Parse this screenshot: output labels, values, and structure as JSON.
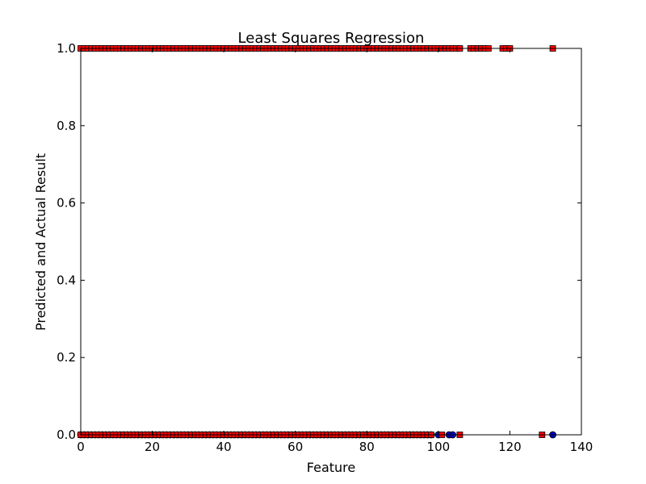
{
  "chart_data": {
    "type": "scatter",
    "title": "Least Squares Regression",
    "xlabel": "Feature",
    "ylabel": "Predicted and Actual Result",
    "xlim": [
      0,
      140
    ],
    "ylim": [
      0,
      1
    ],
    "xticks": [
      "0",
      "20",
      "40",
      "60",
      "80",
      "100",
      "120",
      "140"
    ],
    "yticks": [
      "0.0",
      "0.2",
      "0.4",
      "0.6",
      "0.8",
      "1.0"
    ],
    "grid": false,
    "series": [
      {
        "marker": "circle",
        "color": "#0000bf",
        "points": [
          [
            0,
            0
          ],
          [
            1,
            0
          ],
          [
            2,
            0
          ],
          [
            3,
            0
          ],
          [
            4,
            0
          ],
          [
            5,
            0
          ],
          [
            6,
            0
          ],
          [
            7,
            0
          ],
          [
            8,
            0
          ],
          [
            9,
            0
          ],
          [
            10,
            0
          ],
          [
            11,
            0
          ],
          [
            12,
            0
          ],
          [
            13,
            0
          ],
          [
            14,
            0
          ],
          [
            15,
            0
          ],
          [
            16,
            0
          ],
          [
            17,
            0
          ],
          [
            18,
            0
          ],
          [
            19,
            0
          ],
          [
            20,
            0
          ],
          [
            21,
            0
          ],
          [
            22,
            0
          ],
          [
            23,
            0
          ],
          [
            24,
            0
          ],
          [
            25,
            0
          ],
          [
            26,
            0
          ],
          [
            27,
            0
          ],
          [
            28,
            0
          ],
          [
            29,
            0
          ],
          [
            30,
            0
          ],
          [
            31,
            0
          ],
          [
            32,
            0
          ],
          [
            33,
            0
          ],
          [
            34,
            0
          ],
          [
            35,
            0
          ],
          [
            36,
            0
          ],
          [
            37,
            0
          ],
          [
            38,
            0
          ],
          [
            39,
            0
          ],
          [
            40,
            0
          ],
          [
            41,
            0
          ],
          [
            42,
            0
          ],
          [
            43,
            0
          ],
          [
            44,
            0
          ],
          [
            45,
            0
          ],
          [
            46,
            0
          ],
          [
            47,
            0
          ],
          [
            48,
            0
          ],
          [
            49,
            0
          ],
          [
            50,
            0
          ],
          [
            51,
            0
          ],
          [
            52,
            0
          ],
          [
            53,
            0
          ],
          [
            54,
            0
          ],
          [
            55,
            0
          ],
          [
            56,
            0
          ],
          [
            57,
            0
          ],
          [
            58,
            0
          ],
          [
            59,
            0
          ],
          [
            60,
            0
          ],
          [
            61,
            0
          ],
          [
            62,
            0
          ],
          [
            63,
            0
          ],
          [
            64,
            0
          ],
          [
            65,
            0
          ],
          [
            66,
            0
          ],
          [
            67,
            0
          ],
          [
            68,
            0
          ],
          [
            69,
            0
          ],
          [
            70,
            0
          ],
          [
            71,
            0
          ],
          [
            72,
            0
          ],
          [
            73,
            0
          ],
          [
            74,
            0
          ],
          [
            75,
            0
          ],
          [
            76,
            0
          ],
          [
            77,
            0
          ],
          [
            78,
            0
          ],
          [
            79,
            0
          ],
          [
            80,
            0
          ],
          [
            81,
            0
          ],
          [
            82,
            0
          ],
          [
            83,
            0
          ],
          [
            84,
            0
          ],
          [
            85,
            0
          ],
          [
            86,
            0
          ],
          [
            87,
            0
          ],
          [
            88,
            0
          ],
          [
            89,
            0
          ],
          [
            90,
            0
          ],
          [
            91,
            0
          ],
          [
            92,
            0
          ],
          [
            93,
            0
          ],
          [
            94,
            0
          ],
          [
            95,
            0
          ],
          [
            96,
            0
          ],
          [
            97,
            0
          ],
          [
            98,
            0
          ],
          [
            100,
            0
          ],
          [
            103,
            0
          ],
          [
            104,
            0
          ],
          [
            132,
            0
          ]
        ]
      },
      {
        "marker": "square",
        "color": "#ff0000",
        "points": [
          [
            0,
            0
          ],
          [
            1,
            0
          ],
          [
            2,
            0
          ],
          [
            3,
            0
          ],
          [
            4,
            0
          ],
          [
            5,
            0
          ],
          [
            6,
            0
          ],
          [
            7,
            0
          ],
          [
            8,
            0
          ],
          [
            9,
            0
          ],
          [
            10,
            0
          ],
          [
            11,
            0
          ],
          [
            12,
            0
          ],
          [
            13,
            0
          ],
          [
            14,
            0
          ],
          [
            15,
            0
          ],
          [
            16,
            0
          ],
          [
            17,
            0
          ],
          [
            18,
            0
          ],
          [
            19,
            0
          ],
          [
            20,
            0
          ],
          [
            21,
            0
          ],
          [
            22,
            0
          ],
          [
            23,
            0
          ],
          [
            24,
            0
          ],
          [
            25,
            0
          ],
          [
            26,
            0
          ],
          [
            27,
            0
          ],
          [
            28,
            0
          ],
          [
            29,
            0
          ],
          [
            30,
            0
          ],
          [
            31,
            0
          ],
          [
            32,
            0
          ],
          [
            33,
            0
          ],
          [
            34,
            0
          ],
          [
            35,
            0
          ],
          [
            36,
            0
          ],
          [
            37,
            0
          ],
          [
            38,
            0
          ],
          [
            39,
            0
          ],
          [
            40,
            0
          ],
          [
            41,
            0
          ],
          [
            42,
            0
          ],
          [
            43,
            0
          ],
          [
            44,
            0
          ],
          [
            45,
            0
          ],
          [
            46,
            0
          ],
          [
            47,
            0
          ],
          [
            48,
            0
          ],
          [
            49,
            0
          ],
          [
            50,
            0
          ],
          [
            51,
            0
          ],
          [
            52,
            0
          ],
          [
            53,
            0
          ],
          [
            54,
            0
          ],
          [
            55,
            0
          ],
          [
            56,
            0
          ],
          [
            57,
            0
          ],
          [
            58,
            0
          ],
          [
            59,
            0
          ],
          [
            60,
            0
          ],
          [
            61,
            0
          ],
          [
            62,
            0
          ],
          [
            63,
            0
          ],
          [
            64,
            0
          ],
          [
            65,
            0
          ],
          [
            66,
            0
          ],
          [
            67,
            0
          ],
          [
            68,
            0
          ],
          [
            69,
            0
          ],
          [
            70,
            0
          ],
          [
            71,
            0
          ],
          [
            72,
            0
          ],
          [
            73,
            0
          ],
          [
            74,
            0
          ],
          [
            75,
            0
          ],
          [
            76,
            0
          ],
          [
            77,
            0
          ],
          [
            78,
            0
          ],
          [
            79,
            0
          ],
          [
            80,
            0
          ],
          [
            81,
            0
          ],
          [
            82,
            0
          ],
          [
            83,
            0
          ],
          [
            84,
            0
          ],
          [
            85,
            0
          ],
          [
            86,
            0
          ],
          [
            87,
            0
          ],
          [
            88,
            0
          ],
          [
            89,
            0
          ],
          [
            90,
            0
          ],
          [
            91,
            0
          ],
          [
            92,
            0
          ],
          [
            93,
            0
          ],
          [
            94,
            0
          ],
          [
            95,
            0
          ],
          [
            96,
            0
          ],
          [
            97,
            0
          ],
          [
            98,
            0
          ],
          [
            101,
            0
          ],
          [
            106,
            0
          ],
          [
            129,
            0
          ],
          [
            0,
            1
          ],
          [
            1,
            1
          ],
          [
            2,
            1
          ],
          [
            3,
            1
          ],
          [
            4,
            1
          ],
          [
            5,
            1
          ],
          [
            6,
            1
          ],
          [
            7,
            1
          ],
          [
            8,
            1
          ],
          [
            9,
            1
          ],
          [
            10,
            1
          ],
          [
            11,
            1
          ],
          [
            12,
            1
          ],
          [
            13,
            1
          ],
          [
            14,
            1
          ],
          [
            15,
            1
          ],
          [
            16,
            1
          ],
          [
            17,
            1
          ],
          [
            18,
            1
          ],
          [
            19,
            1
          ],
          [
            20,
            1
          ],
          [
            21,
            1
          ],
          [
            22,
            1
          ],
          [
            23,
            1
          ],
          [
            24,
            1
          ],
          [
            25,
            1
          ],
          [
            26,
            1
          ],
          [
            27,
            1
          ],
          [
            28,
            1
          ],
          [
            29,
            1
          ],
          [
            30,
            1
          ],
          [
            31,
            1
          ],
          [
            32,
            1
          ],
          [
            33,
            1
          ],
          [
            34,
            1
          ],
          [
            35,
            1
          ],
          [
            36,
            1
          ],
          [
            37,
            1
          ],
          [
            38,
            1
          ],
          [
            39,
            1
          ],
          [
            40,
            1
          ],
          [
            41,
            1
          ],
          [
            42,
            1
          ],
          [
            43,
            1
          ],
          [
            44,
            1
          ],
          [
            45,
            1
          ],
          [
            46,
            1
          ],
          [
            47,
            1
          ],
          [
            48,
            1
          ],
          [
            49,
            1
          ],
          [
            50,
            1
          ],
          [
            51,
            1
          ],
          [
            52,
            1
          ],
          [
            53,
            1
          ],
          [
            54,
            1
          ],
          [
            55,
            1
          ],
          [
            56,
            1
          ],
          [
            57,
            1
          ],
          [
            58,
            1
          ],
          [
            59,
            1
          ],
          [
            60,
            1
          ],
          [
            61,
            1
          ],
          [
            62,
            1
          ],
          [
            63,
            1
          ],
          [
            64,
            1
          ],
          [
            65,
            1
          ],
          [
            66,
            1
          ],
          [
            67,
            1
          ],
          [
            68,
            1
          ],
          [
            69,
            1
          ],
          [
            70,
            1
          ],
          [
            71,
            1
          ],
          [
            72,
            1
          ],
          [
            73,
            1
          ],
          [
            74,
            1
          ],
          [
            75,
            1
          ],
          [
            76,
            1
          ],
          [
            77,
            1
          ],
          [
            78,
            1
          ],
          [
            79,
            1
          ],
          [
            80,
            1
          ],
          [
            81,
            1
          ],
          [
            82,
            1
          ],
          [
            83,
            1
          ],
          [
            84,
            1
          ],
          [
            85,
            1
          ],
          [
            86,
            1
          ],
          [
            87,
            1
          ],
          [
            88,
            1
          ],
          [
            89,
            1
          ],
          [
            90,
            1
          ],
          [
            91,
            1
          ],
          [
            92,
            1
          ],
          [
            93,
            1
          ],
          [
            94,
            1
          ],
          [
            95,
            1
          ],
          [
            96,
            1
          ],
          [
            97,
            1
          ],
          [
            98,
            1
          ],
          [
            99,
            1
          ],
          [
            100,
            1
          ],
          [
            101,
            1
          ],
          [
            102,
            1
          ],
          [
            103,
            1
          ],
          [
            104,
            1
          ],
          [
            105,
            1
          ],
          [
            106,
            1
          ],
          [
            109,
            1
          ],
          [
            110,
            1
          ],
          [
            111,
            1
          ],
          [
            112,
            1
          ],
          [
            113,
            1
          ],
          [
            114,
            1
          ],
          [
            118,
            1
          ],
          [
            119,
            1
          ],
          [
            120,
            1
          ],
          [
            132,
            1
          ]
        ]
      }
    ]
  }
}
